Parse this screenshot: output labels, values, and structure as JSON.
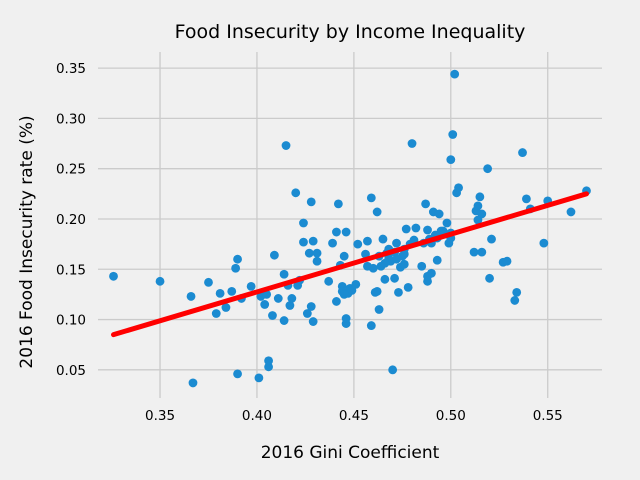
{
  "chart_data": {
    "type": "scatter",
    "title": "Food Insecurity by Income Inequality",
    "xlabel": "2016 Gini Coefficient",
    "ylabel": "2016 Food Insecurity rate (%)",
    "xlim": [
      0.318,
      0.578
    ],
    "ylim": [
      0.022,
      0.366
    ],
    "xticks": [
      0.35,
      0.4,
      0.45,
      0.5,
      0.55
    ],
    "xtick_labels": [
      "0.35",
      "0.40",
      "0.45",
      "0.50",
      "0.55"
    ],
    "yticks": [
      0.05,
      0.1,
      0.15,
      0.2,
      0.25,
      0.3,
      0.35
    ],
    "ytick_labels": [
      "0.05",
      "0.10",
      "0.15",
      "0.20",
      "0.25",
      "0.30",
      "0.35"
    ],
    "grid": true,
    "colors": {
      "points": "#1b8bd1",
      "fit_line": "#ff0000",
      "background": "#f0f0f0",
      "grid": "#cbcbcb"
    },
    "fit_line": {
      "x": [
        0.326,
        0.57
      ],
      "y": [
        0.085,
        0.225
      ]
    },
    "points": [
      [
        0.326,
        0.143
      ],
      [
        0.35,
        0.138
      ],
      [
        0.366,
        0.123
      ],
      [
        0.367,
        0.037
      ],
      [
        0.375,
        0.137
      ],
      [
        0.379,
        0.106
      ],
      [
        0.381,
        0.126
      ],
      [
        0.384,
        0.112
      ],
      [
        0.387,
        0.128
      ],
      [
        0.389,
        0.151
      ],
      [
        0.39,
        0.046
      ],
      [
        0.39,
        0.16
      ],
      [
        0.392,
        0.121
      ],
      [
        0.397,
        0.133
      ],
      [
        0.401,
        0.042
      ],
      [
        0.402,
        0.123
      ],
      [
        0.404,
        0.115
      ],
      [
        0.405,
        0.125
      ],
      [
        0.406,
        0.053
      ],
      [
        0.406,
        0.059
      ],
      [
        0.408,
        0.104
      ],
      [
        0.409,
        0.164
      ],
      [
        0.411,
        0.121
      ],
      [
        0.414,
        0.145
      ],
      [
        0.414,
        0.099
      ],
      [
        0.415,
        0.273
      ],
      [
        0.416,
        0.134
      ],
      [
        0.417,
        0.114
      ],
      [
        0.418,
        0.121
      ],
      [
        0.42,
        0.226
      ],
      [
        0.421,
        0.134
      ],
      [
        0.422,
        0.139
      ],
      [
        0.424,
        0.177
      ],
      [
        0.424,
        0.196
      ],
      [
        0.426,
        0.106
      ],
      [
        0.427,
        0.166
      ],
      [
        0.428,
        0.113
      ],
      [
        0.428,
        0.217
      ],
      [
        0.429,
        0.098
      ],
      [
        0.429,
        0.178
      ],
      [
        0.431,
        0.158
      ],
      [
        0.431,
        0.166
      ],
      [
        0.437,
        0.138
      ],
      [
        0.439,
        0.176
      ],
      [
        0.441,
        0.187
      ],
      [
        0.441,
        0.118
      ],
      [
        0.442,
        0.215
      ],
      [
        0.443,
        0.154
      ],
      [
        0.444,
        0.133
      ],
      [
        0.444,
        0.128
      ],
      [
        0.445,
        0.163
      ],
      [
        0.445,
        0.125
      ],
      [
        0.446,
        0.096
      ],
      [
        0.446,
        0.101
      ],
      [
        0.446,
        0.187
      ],
      [
        0.447,
        0.126
      ],
      [
        0.448,
        0.131
      ],
      [
        0.449,
        0.129
      ],
      [
        0.451,
        0.135
      ],
      [
        0.452,
        0.175
      ],
      [
        0.456,
        0.165
      ],
      [
        0.457,
        0.153
      ],
      [
        0.457,
        0.178
      ],
      [
        0.459,
        0.221
      ],
      [
        0.459,
        0.094
      ],
      [
        0.46,
        0.151
      ],
      [
        0.461,
        0.127
      ],
      [
        0.462,
        0.128
      ],
      [
        0.462,
        0.207
      ],
      [
        0.463,
        0.11
      ],
      [
        0.463,
        0.163
      ],
      [
        0.464,
        0.153
      ],
      [
        0.465,
        0.18
      ],
      [
        0.466,
        0.14
      ],
      [
        0.467,
        0.166
      ],
      [
        0.468,
        0.161
      ],
      [
        0.469,
        0.158
      ],
      [
        0.47,
        0.05
      ],
      [
        0.471,
        0.141
      ],
      [
        0.471,
        0.167
      ],
      [
        0.472,
        0.176
      ],
      [
        0.472,
        0.16
      ],
      [
        0.473,
        0.127
      ],
      [
        0.474,
        0.152
      ],
      [
        0.475,
        0.163
      ],
      [
        0.476,
        0.165
      ],
      [
        0.476,
        0.155
      ],
      [
        0.476,
        0.17
      ],
      [
        0.477,
        0.19
      ],
      [
        0.478,
        0.132
      ],
      [
        0.479,
        0.175
      ],
      [
        0.48,
        0.275
      ],
      [
        0.481,
        0.179
      ],
      [
        0.482,
        0.191
      ],
      [
        0.485,
        0.153
      ],
      [
        0.486,
        0.176
      ],
      [
        0.487,
        0.215
      ],
      [
        0.488,
        0.138
      ],
      [
        0.488,
        0.143
      ],
      [
        0.488,
        0.189
      ],
      [
        0.489,
        0.18
      ],
      [
        0.49,
        0.146
      ],
      [
        0.49,
        0.176
      ],
      [
        0.491,
        0.207
      ],
      [
        0.492,
        0.184
      ],
      [
        0.493,
        0.181
      ],
      [
        0.493,
        0.159
      ],
      [
        0.494,
        0.205
      ],
      [
        0.495,
        0.188
      ],
      [
        0.496,
        0.188
      ],
      [
        0.498,
        0.196
      ],
      [
        0.499,
        0.176
      ],
      [
        0.5,
        0.259
      ],
      [
        0.5,
        0.181
      ],
      [
        0.501,
        0.284
      ],
      [
        0.502,
        0.344
      ],
      [
        0.503,
        0.226
      ],
      [
        0.504,
        0.231
      ],
      [
        0.512,
        0.167
      ],
      [
        0.513,
        0.208
      ],
      [
        0.514,
        0.199
      ],
      [
        0.514,
        0.213
      ],
      [
        0.515,
        0.222
      ],
      [
        0.516,
        0.167
      ],
      [
        0.516,
        0.205
      ],
      [
        0.519,
        0.25
      ],
      [
        0.52,
        0.141
      ],
      [
        0.521,
        0.18
      ],
      [
        0.527,
        0.157
      ],
      [
        0.529,
        0.158
      ],
      [
        0.533,
        0.119
      ],
      [
        0.534,
        0.127
      ],
      [
        0.537,
        0.266
      ],
      [
        0.539,
        0.22
      ],
      [
        0.541,
        0.21
      ],
      [
        0.548,
        0.176
      ],
      [
        0.55,
        0.218
      ],
      [
        0.562,
        0.207
      ],
      [
        0.57,
        0.228
      ],
      [
        0.5,
        0.186
      ],
      [
        0.497,
        0.185
      ],
      [
        0.468,
        0.17
      ],
      [
        0.466,
        0.156
      ]
    ]
  }
}
